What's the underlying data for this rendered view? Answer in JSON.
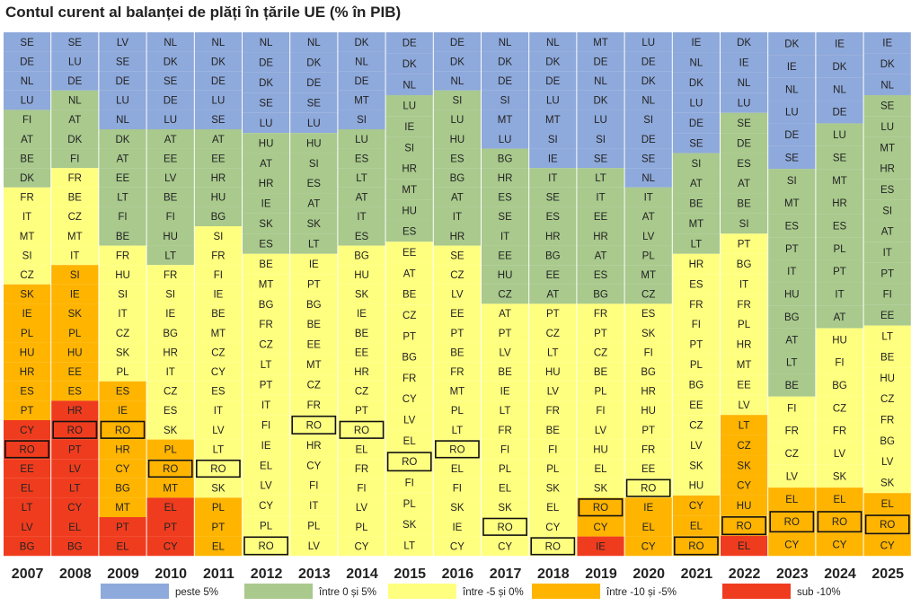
{
  "title": "Contul curent al balanței de plăți în țările UE (% în PIB)",
  "chart_data": {
    "type": "heatmap",
    "title": "Contul curent al balanței de plăți în țările UE (% în PIB)",
    "legend": [
      {
        "key": "peste5",
        "label": "peste 5%",
        "color": "#8EA9DB"
      },
      {
        "key": "0to5",
        "label": "între 0 și 5%",
        "color": "#A9C98D"
      },
      {
        "key": "m5to0",
        "label": "între -5 și 0%",
        "color": "#FFFF7F"
      },
      {
        "key": "m10tom5",
        "label": "între -10 și -5%",
        "color": "#FFB400"
      },
      {
        "key": "sub10",
        "label": "sub -10%",
        "color": "#F03C1E"
      }
    ],
    "years": [
      "2007",
      "2008",
      "2009",
      "2010",
      "2011",
      "2012",
      "2013",
      "2014",
      "2015",
      "2016",
      "2017",
      "2018",
      "2019",
      "2020",
      "2021",
      "2022",
      "2023",
      "2024",
      "2025"
    ],
    "highlight": "RO",
    "columns": [
      {
        "year": "2007",
        "countries": [
          "SE",
          "DE",
          "NL",
          "LU",
          "FI",
          "AT",
          "BE",
          "DK",
          "FR",
          "IT",
          "MT",
          "SI",
          "CZ",
          "SK",
          "IE",
          "PL",
          "HU",
          "HR",
          "ES",
          "PT",
          "CY",
          "RO",
          "EE",
          "EL",
          "LT",
          "LV",
          "BG"
        ],
        "classes": [
          0,
          0,
          0,
          0,
          1,
          1,
          1,
          1,
          2,
          2,
          2,
          2,
          2,
          3,
          3,
          3,
          3,
          3,
          3,
          3,
          4,
          4,
          4,
          4,
          4,
          4,
          4
        ]
      },
      {
        "year": "2008",
        "countries": [
          "SE",
          "LU",
          "DE",
          "NL",
          "AT",
          "DK",
          "FI",
          "FR",
          "BE",
          "CZ",
          "MT",
          "IT",
          "SI",
          "IE",
          "SK",
          "PL",
          "HU",
          "EE",
          "ES",
          "HR",
          "RO",
          "PT",
          "LV",
          "LT",
          "CY",
          "EL",
          "BG"
        ],
        "classes": [
          0,
          0,
          0,
          1,
          1,
          1,
          1,
          2,
          2,
          2,
          2,
          2,
          3,
          3,
          3,
          3,
          3,
          3,
          3,
          4,
          4,
          4,
          4,
          4,
          4,
          4,
          4
        ]
      },
      {
        "year": "2009",
        "countries": [
          "LV",
          "SE",
          "DE",
          "LU",
          "NL",
          "DK",
          "AT",
          "EE",
          "LT",
          "FI",
          "BE",
          "FR",
          "HU",
          "SI",
          "IT",
          "CZ",
          "SK",
          "PL",
          "ES",
          "IE",
          "RO",
          "HR",
          "CY",
          "BG",
          "MT",
          "PT",
          "EL"
        ],
        "classes": [
          0,
          0,
          0,
          0,
          0,
          1,
          1,
          1,
          1,
          1,
          1,
          2,
          2,
          2,
          2,
          2,
          2,
          2,
          3,
          3,
          3,
          3,
          3,
          3,
          3,
          4,
          4
        ]
      },
      {
        "year": "2010",
        "countries": [
          "NL",
          "DK",
          "SE",
          "DE",
          "LU",
          "AT",
          "EE",
          "LV",
          "BE",
          "FI",
          "HU",
          "LT",
          "FR",
          "SI",
          "IE",
          "BG",
          "HR",
          "IT",
          "CZ",
          "ES",
          "SK",
          "PL",
          "RO",
          "MT",
          "EL",
          "PT",
          "CY"
        ],
        "classes": [
          0,
          0,
          0,
          0,
          0,
          1,
          1,
          1,
          1,
          1,
          1,
          1,
          2,
          2,
          2,
          2,
          2,
          2,
          2,
          2,
          2,
          3,
          3,
          3,
          4,
          4,
          4
        ]
      },
      {
        "year": "2011",
        "countries": [
          "NL",
          "DK",
          "DE",
          "LU",
          "SE",
          "AT",
          "EE",
          "HR",
          "HU",
          "BG",
          "SI",
          "FR",
          "FI",
          "IE",
          "BE",
          "MT",
          "CZ",
          "CY",
          "ES",
          "IT",
          "LV",
          "LT",
          "RO",
          "SK",
          "PL",
          "PT",
          "EL"
        ],
        "classes": [
          0,
          0,
          0,
          0,
          0,
          1,
          1,
          1,
          1,
          1,
          2,
          2,
          2,
          2,
          2,
          2,
          2,
          2,
          2,
          2,
          2,
          2,
          2,
          2,
          3,
          3,
          3
        ]
      },
      {
        "year": "2012",
        "countries": [
          "NL",
          "DE",
          "DK",
          "SE",
          "LU",
          "HU",
          "AT",
          "HR",
          "IE",
          "SK",
          "ES",
          "BE",
          "MT",
          "BG",
          "FR",
          "CZ",
          "LT",
          "PT",
          "IT",
          "FI",
          "IE",
          "EL",
          "LV",
          "CY",
          "PL",
          "RO"
        ],
        "classes": [
          0,
          0,
          0,
          0,
          0,
          1,
          1,
          1,
          1,
          1,
          1,
          2,
          2,
          2,
          2,
          2,
          2,
          2,
          2,
          2,
          2,
          2,
          2,
          2,
          2,
          2
        ]
      },
      {
        "year": "2013",
        "countries": [
          "NL",
          "DK",
          "DE",
          "SE",
          "LU",
          "HU",
          "SI",
          "ES",
          "AT",
          "SK",
          "LT",
          "IE",
          "PT",
          "BG",
          "BE",
          "EE",
          "MT",
          "CZ",
          "FR",
          "RO",
          "HR",
          "CY",
          "FI",
          "IT",
          "PL",
          "LV"
        ],
        "classes": [
          0,
          0,
          0,
          0,
          0,
          1,
          1,
          1,
          1,
          1,
          1,
          2,
          2,
          2,
          2,
          2,
          2,
          2,
          2,
          2,
          2,
          2,
          2,
          2,
          2,
          2
        ]
      },
      {
        "year": "2014",
        "countries": [
          "DK",
          "NL",
          "DE",
          "MT",
          "SI",
          "LU",
          "ES",
          "LT",
          "AT",
          "IT",
          "ES",
          "BG",
          "HU",
          "SK",
          "IE",
          "BE",
          "EE",
          "HR",
          "CZ",
          "PT",
          "RO",
          "EL",
          "FR",
          "FI",
          "LV",
          "PL",
          "CY"
        ],
        "classes": [
          0,
          0,
          0,
          0,
          0,
          1,
          1,
          1,
          1,
          1,
          1,
          2,
          2,
          2,
          2,
          2,
          2,
          2,
          2,
          2,
          2,
          2,
          2,
          2,
          2,
          2,
          2
        ]
      },
      {
        "year": "2015",
        "countries": [
          "DE",
          "DK",
          "NL",
          "LU",
          "IE",
          "SI",
          "HR",
          "MT",
          "HU",
          "ES",
          "EE",
          "AT",
          "BE",
          "CZ",
          "PT",
          "BG",
          "FR",
          "CY",
          "LV",
          "EL",
          "RO",
          "FI",
          "PL",
          "SK",
          "LT"
        ],
        "classes": [
          0,
          0,
          0,
          1,
          1,
          1,
          1,
          1,
          1,
          1,
          2,
          2,
          2,
          2,
          2,
          2,
          2,
          2,
          2,
          2,
          2,
          2,
          2,
          2,
          2
        ]
      },
      {
        "year": "2016",
        "countries": [
          "DE",
          "DK",
          "NL",
          "SI",
          "LU",
          "HU",
          "ES",
          "BG",
          "AT",
          "IT",
          "HR",
          "SE",
          "CZ",
          "LV",
          "EE",
          "PT",
          "BE",
          "FR",
          "MT",
          "PL",
          "LT",
          "RO",
          "EL",
          "FI",
          "SK",
          "IE",
          "CY"
        ],
        "classes": [
          0,
          0,
          0,
          1,
          1,
          1,
          1,
          1,
          1,
          1,
          1,
          2,
          2,
          2,
          2,
          2,
          2,
          2,
          2,
          2,
          2,
          2,
          2,
          2,
          2,
          2,
          2
        ]
      },
      {
        "year": "2017",
        "countries": [
          "NL",
          "DK",
          "DE",
          "SI",
          "MT",
          "LU",
          "BG",
          "HR",
          "ES",
          "SE",
          "IT",
          "EE",
          "HU",
          "CZ",
          "AT",
          "PT",
          "LV",
          "BE",
          "IE",
          "LT",
          "FR",
          "FI",
          "PL",
          "EL",
          "SK",
          "RO",
          "CY"
        ],
        "classes": [
          0,
          0,
          0,
          0,
          0,
          0,
          1,
          1,
          1,
          1,
          1,
          1,
          1,
          1,
          2,
          2,
          2,
          2,
          2,
          2,
          2,
          2,
          2,
          2,
          2,
          2,
          2
        ]
      },
      {
        "year": "2018",
        "countries": [
          "NL",
          "DK",
          "DE",
          "LU",
          "MT",
          "SI",
          "IE",
          "IT",
          "SE",
          "ES",
          "HR",
          "BG",
          "EE",
          "AT",
          "PT",
          "CZ",
          "LT",
          "HU",
          "LV",
          "FR",
          "BE",
          "FI",
          "PL",
          "SK",
          "EL",
          "CY",
          "RO"
        ],
        "classes": [
          0,
          0,
          0,
          0,
          0,
          0,
          0,
          1,
          1,
          1,
          1,
          1,
          1,
          1,
          2,
          2,
          2,
          2,
          2,
          2,
          2,
          2,
          2,
          2,
          2,
          2,
          2
        ]
      },
      {
        "year": "2019",
        "countries": [
          "MT",
          "DE",
          "NL",
          "DK",
          "LU",
          "SI",
          "SE",
          "LT",
          "IT",
          "EE",
          "HR",
          "AT",
          "ES",
          "BG",
          "FR",
          "PT",
          "CZ",
          "BE",
          "PL",
          "FI",
          "LV",
          "HU",
          "EL",
          "SK",
          "RO",
          "CY",
          "IE"
        ],
        "classes": [
          0,
          0,
          0,
          0,
          0,
          0,
          0,
          1,
          1,
          1,
          1,
          1,
          1,
          1,
          2,
          2,
          2,
          2,
          2,
          2,
          2,
          2,
          2,
          2,
          3,
          3,
          4
        ]
      },
      {
        "year": "2020",
        "countries": [
          "LU",
          "DE",
          "DK",
          "NL",
          "SI",
          "DE",
          "SE",
          "NL",
          "IT",
          "AT",
          "LV",
          "PL",
          "MT",
          "CZ",
          "ES",
          "SK",
          "FI",
          "BG",
          "HR",
          "HU",
          "PT",
          "FR",
          "EE",
          "RO",
          "IE",
          "EL",
          "CY"
        ],
        "classes": [
          0,
          0,
          0,
          0,
          0,
          0,
          0,
          0,
          1,
          1,
          1,
          1,
          1,
          1,
          2,
          2,
          2,
          2,
          2,
          2,
          2,
          2,
          2,
          2,
          3,
          3,
          3
        ]
      },
      {
        "year": "2021",
        "countries": [
          "IE",
          "NL",
          "DK",
          "LU",
          "DE",
          "SE",
          "SI",
          "AT",
          "BE",
          "MT",
          "LT",
          "HR",
          "ES",
          "FR",
          "FI",
          "PT",
          "PL",
          "BG",
          "EE",
          "CZ",
          "LV",
          "SK",
          "HU",
          "CY",
          "EL",
          "RO"
        ],
        "classes": [
          0,
          0,
          0,
          0,
          0,
          0,
          1,
          1,
          1,
          1,
          1,
          2,
          2,
          2,
          2,
          2,
          2,
          2,
          2,
          2,
          2,
          2,
          2,
          3,
          3,
          3
        ]
      },
      {
        "year": "2022",
        "countries": [
          "DK",
          "IE",
          "NL",
          "LU",
          "SE",
          "DE",
          "ES",
          "AT",
          "BE",
          "SI",
          "PT",
          "BG",
          "IT",
          "FR",
          "PL",
          "HR",
          "MT",
          "EE",
          "LV",
          "LT",
          "CZ",
          "SK",
          "CY",
          "HU",
          "RO",
          "EL"
        ],
        "classes": [
          0,
          0,
          0,
          0,
          1,
          1,
          1,
          1,
          1,
          1,
          2,
          2,
          2,
          2,
          2,
          2,
          2,
          2,
          2,
          3,
          3,
          3,
          3,
          3,
          3,
          4
        ]
      },
      {
        "year": "2023",
        "countries": [
          "DK",
          "IE",
          "NL",
          "LU",
          "DE",
          "SE",
          "SI",
          "MT",
          "ES",
          "PT",
          "IT",
          "HU",
          "BG",
          "AT",
          "LT",
          "BE",
          "FI",
          "FR",
          "CZ",
          "LV",
          "EL",
          "RO",
          "CY"
        ],
        "classes": [
          0,
          0,
          0,
          0,
          0,
          0,
          1,
          1,
          1,
          1,
          1,
          1,
          1,
          1,
          1,
          1,
          2,
          2,
          2,
          2,
          3,
          3,
          3
        ]
      },
      {
        "year": "2024",
        "countries": [
          "IE",
          "DK",
          "NL",
          "DE",
          "LU",
          "SE",
          "MT",
          "HR",
          "ES",
          "PL",
          "PT",
          "IT",
          "AT",
          "HU",
          "FI",
          "BG",
          "CZ",
          "FR",
          "LV",
          "SK",
          "EL",
          "RO",
          "CY"
        ],
        "classes": [
          0,
          0,
          0,
          0,
          1,
          1,
          1,
          1,
          1,
          1,
          1,
          1,
          1,
          2,
          2,
          2,
          2,
          2,
          2,
          2,
          3,
          3,
          3
        ]
      },
      {
        "year": "2025",
        "countries": [
          "IE",
          "DK",
          "NL",
          "SE",
          "LU",
          "MT",
          "HR",
          "ES",
          "SI",
          "AT",
          "IT",
          "PT",
          "FI",
          "EE",
          "LT",
          "BE",
          "HU",
          "CZ",
          "FR",
          "BG",
          "LV",
          "SK",
          "EL",
          "RO",
          "CY"
        ],
        "classes": [
          0,
          0,
          0,
          1,
          1,
          1,
          1,
          1,
          1,
          1,
          1,
          1,
          1,
          1,
          2,
          2,
          2,
          2,
          2,
          2,
          2,
          2,
          3,
          3,
          3
        ]
      }
    ]
  }
}
